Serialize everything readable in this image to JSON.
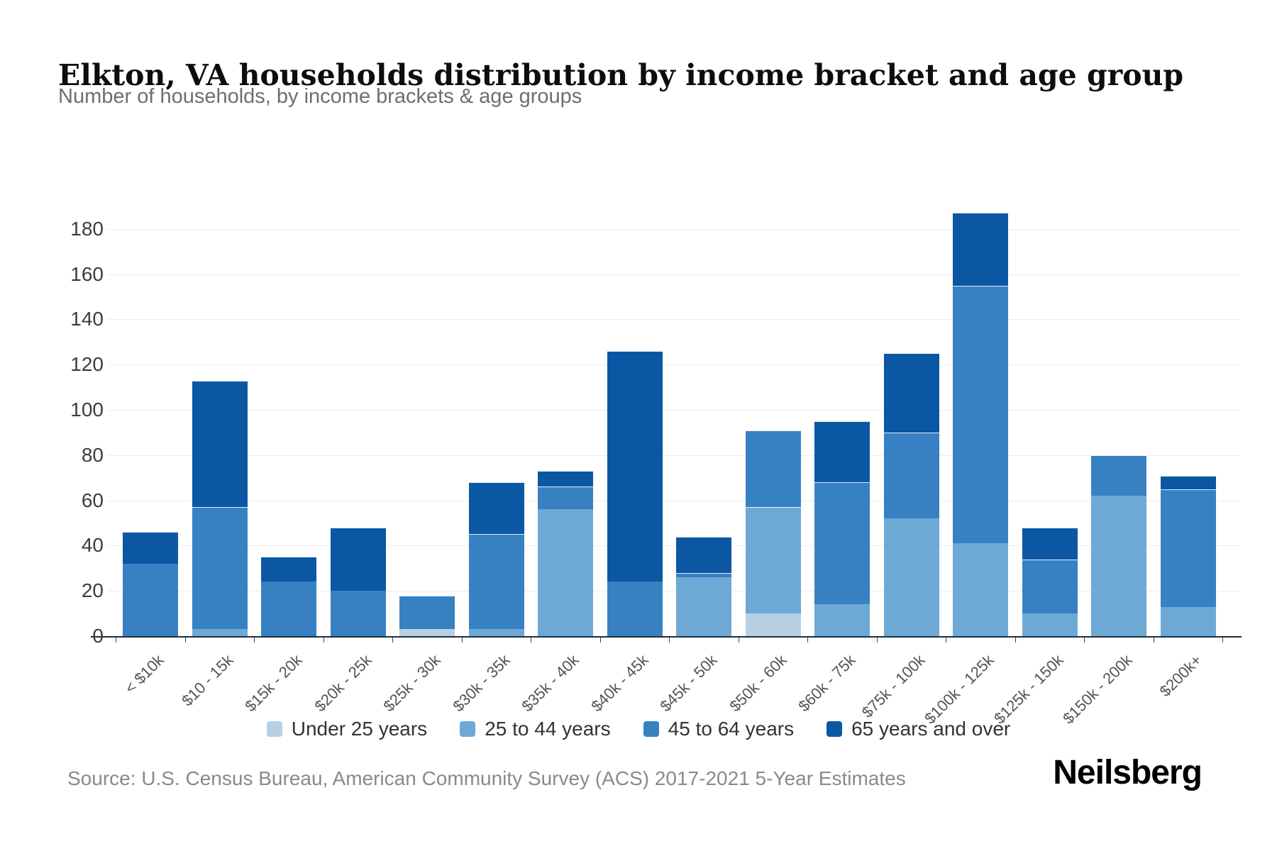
{
  "header": {
    "title": "Elkton, VA households distribution by income bracket and age group",
    "subtitle": "Number of households, by income brackets & age groups"
  },
  "footer": {
    "source": "Source: U.S. Census Bureau, American Community Survey (ACS) 2017-2021 5-Year Estimates",
    "brand": "Neilsberg"
  },
  "chart_data": {
    "type": "bar",
    "stacked": true,
    "grid": true,
    "legend_position": "bottom",
    "xlabel": "",
    "ylabel": "",
    "ylim": [
      0,
      190
    ],
    "yticks": [
      0,
      20,
      40,
      60,
      80,
      100,
      120,
      140,
      160,
      180
    ],
    "categories": [
      "< $10k",
      "$10 - 15k",
      "$15k - 20k",
      "$20k - 25k",
      "$25k - 30k",
      "$30k - 35k",
      "$35k - 40k",
      "$40k - 45k",
      "$45k - 50k",
      "$50k - 60k",
      "$60k - 75k",
      "$75k - 100k",
      "$100k - 125k",
      "$125k - 150k",
      "$150k - 200k",
      "$200k+"
    ],
    "series": [
      {
        "name": "Under 25 years",
        "color": "#b7cfe3",
        "values": [
          0,
          0,
          0,
          0,
          3,
          0,
          0,
          0,
          0,
          10,
          0,
          0,
          0,
          0,
          0,
          0
        ]
      },
      {
        "name": "25 to 44 years",
        "color": "#6ea9d6",
        "values": [
          0,
          3,
          0,
          0,
          0,
          3,
          56,
          0,
          26,
          47,
          14,
          52,
          41,
          10,
          62,
          13
        ]
      },
      {
        "name": "45 to 64 years",
        "color": "#3781c3",
        "values": [
          32,
          54,
          24,
          20,
          15,
          42,
          10,
          24,
          2,
          34,
          54,
          38,
          114,
          24,
          18,
          52
        ]
      },
      {
        "name": "65 years and over",
        "color": "#0b57a4",
        "values": [
          14,
          56,
          11,
          28,
          0,
          23,
          7,
          102,
          16,
          0,
          27,
          35,
          32,
          14,
          0,
          6
        ]
      }
    ],
    "totals": [
      46,
      113,
      35,
      48,
      18,
      68,
      73,
      126,
      44,
      91,
      95,
      125,
      187,
      48,
      80,
      71
    ]
  }
}
